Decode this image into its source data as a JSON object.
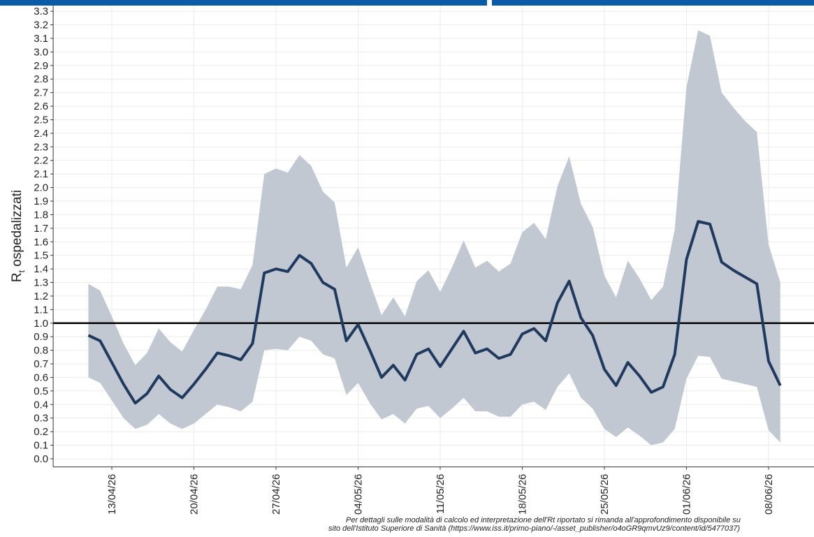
{
  "chart_data": {
    "type": "line",
    "ylabel_parts": [
      "R",
      "t",
      " ospedalizzati"
    ],
    "caption": [
      "Per dettagli sulle modalità di calcolo ed interpretazione dell'Rt riportato si rimanda all'approfondimento disponibile su",
      "sito dell'Istituto Superiore di Sanità (https://www.iss.it/primo-piano/-/asset_publisher/o4oGR9qmvUz9/content/id/5477037)"
    ],
    "x": [
      "11/04/26",
      "12/04/26",
      "13/04/26",
      "14/04/26",
      "15/04/26",
      "16/04/26",
      "17/04/26",
      "18/04/26",
      "19/04/26",
      "20/04/26",
      "21/04/26",
      "22/04/26",
      "23/04/26",
      "24/04/26",
      "25/04/26",
      "26/04/26",
      "27/04/26",
      "28/04/26",
      "29/04/26",
      "30/04/26",
      "01/05/26",
      "02/05/26",
      "03/05/26",
      "04/05/26",
      "05/05/26",
      "06/05/26",
      "07/05/26",
      "08/05/26",
      "09/05/26",
      "10/05/26",
      "11/05/26",
      "12/05/26",
      "13/05/26",
      "14/05/26",
      "15/05/26",
      "16/05/26",
      "17/05/26",
      "18/05/26",
      "19/05/26",
      "20/05/26",
      "21/05/26",
      "22/05/26",
      "23/05/26",
      "24/05/26",
      "25/05/26",
      "26/05/26",
      "27/05/26",
      "28/05/26",
      "29/05/26",
      "30/05/26",
      "31/05/26",
      "01/06/26",
      "02/06/26",
      "03/06/26",
      "04/06/26",
      "05/06/26",
      "06/06/26",
      "07/06/26",
      "08/06/26",
      "09/06/26"
    ],
    "line": {
      "color": "#1f3a5f",
      "values": [
        0.91,
        0.87,
        0.71,
        0.55,
        0.41,
        0.48,
        0.61,
        0.51,
        0.45,
        0.55,
        0.66,
        0.78,
        0.76,
        0.73,
        0.85,
        1.37,
        1.4,
        1.38,
        1.5,
        1.44,
        1.3,
        1.25,
        0.87,
        0.99,
        0.8,
        0.6,
        0.69,
        0.58,
        0.77,
        0.81,
        0.68,
        0.81,
        0.94,
        0.78,
        0.81,
        0.74,
        0.77,
        0.92,
        0.96,
        0.87,
        1.15,
        1.31,
        1.04,
        0.91,
        0.66,
        0.54,
        0.71,
        0.61,
        0.49,
        0.53,
        0.77,
        1.47,
        1.75,
        1.73,
        1.45,
        1.39,
        1.34,
        1.29,
        0.72,
        0.54
      ]
    },
    "band": {
      "color": "#c2c8d2",
      "upper": [
        1.29,
        1.24,
        1.05,
        0.85,
        0.69,
        0.78,
        0.96,
        0.86,
        0.79,
        0.95,
        1.1,
        1.27,
        1.27,
        1.25,
        1.43,
        2.1,
        2.14,
        2.11,
        2.24,
        2.16,
        1.97,
        1.89,
        1.41,
        1.56,
        1.3,
        1.06,
        1.19,
        1.05,
        1.31,
        1.39,
        1.23,
        1.41,
        1.61,
        1.41,
        1.46,
        1.38,
        1.44,
        1.67,
        1.74,
        1.62,
        2.01,
        2.23,
        1.88,
        1.71,
        1.35,
        1.19,
        1.46,
        1.33,
        1.17,
        1.27,
        1.69,
        2.74,
        3.16,
        3.12,
        2.7,
        2.59,
        2.49,
        2.41,
        1.58,
        1.3
      ],
      "lower": [
        0.6,
        0.56,
        0.43,
        0.3,
        0.22,
        0.25,
        0.33,
        0.26,
        0.22,
        0.26,
        0.33,
        0.4,
        0.38,
        0.35,
        0.42,
        0.8,
        0.81,
        0.8,
        0.9,
        0.87,
        0.77,
        0.74,
        0.47,
        0.56,
        0.41,
        0.29,
        0.33,
        0.26,
        0.37,
        0.39,
        0.3,
        0.37,
        0.45,
        0.35,
        0.35,
        0.31,
        0.31,
        0.4,
        0.42,
        0.36,
        0.53,
        0.63,
        0.45,
        0.37,
        0.22,
        0.16,
        0.23,
        0.17,
        0.1,
        0.12,
        0.22,
        0.59,
        0.76,
        0.75,
        0.59,
        0.57,
        0.55,
        0.53,
        0.21,
        0.12
      ]
    },
    "hline": {
      "value": 1,
      "color": "#000000"
    },
    "xlim": [
      "08/04/26",
      "12/06/26"
    ],
    "xticks": [
      "13/04/26",
      "20/04/26",
      "27/04/26",
      "04/05/26",
      "11/05/26",
      "18/05/26",
      "25/05/26",
      "01/06/26",
      "08/06/26"
    ],
    "ylim": [
      -0.06,
      3.38
    ],
    "yticks": [
      {
        "value": 0,
        "label": "0.0"
      },
      0.1,
      0.2,
      0.3,
      0.4,
      0.5,
      0.6,
      0.7,
      0.8,
      0.9,
      {
        "value": 1,
        "label": "1.0"
      },
      1.1,
      1.2,
      1.3,
      1.4,
      1.5,
      1.6,
      1.7,
      1.8,
      1.9,
      {
        "value": 2,
        "label": "2.0"
      },
      2.1,
      2.2,
      2.3,
      2.4,
      2.5,
      2.6,
      2.7,
      2.8,
      2.9,
      {
        "value": 3,
        "label": "3.0"
      },
      3.1,
      3.2,
      3.3
    ],
    "grid": true
  }
}
